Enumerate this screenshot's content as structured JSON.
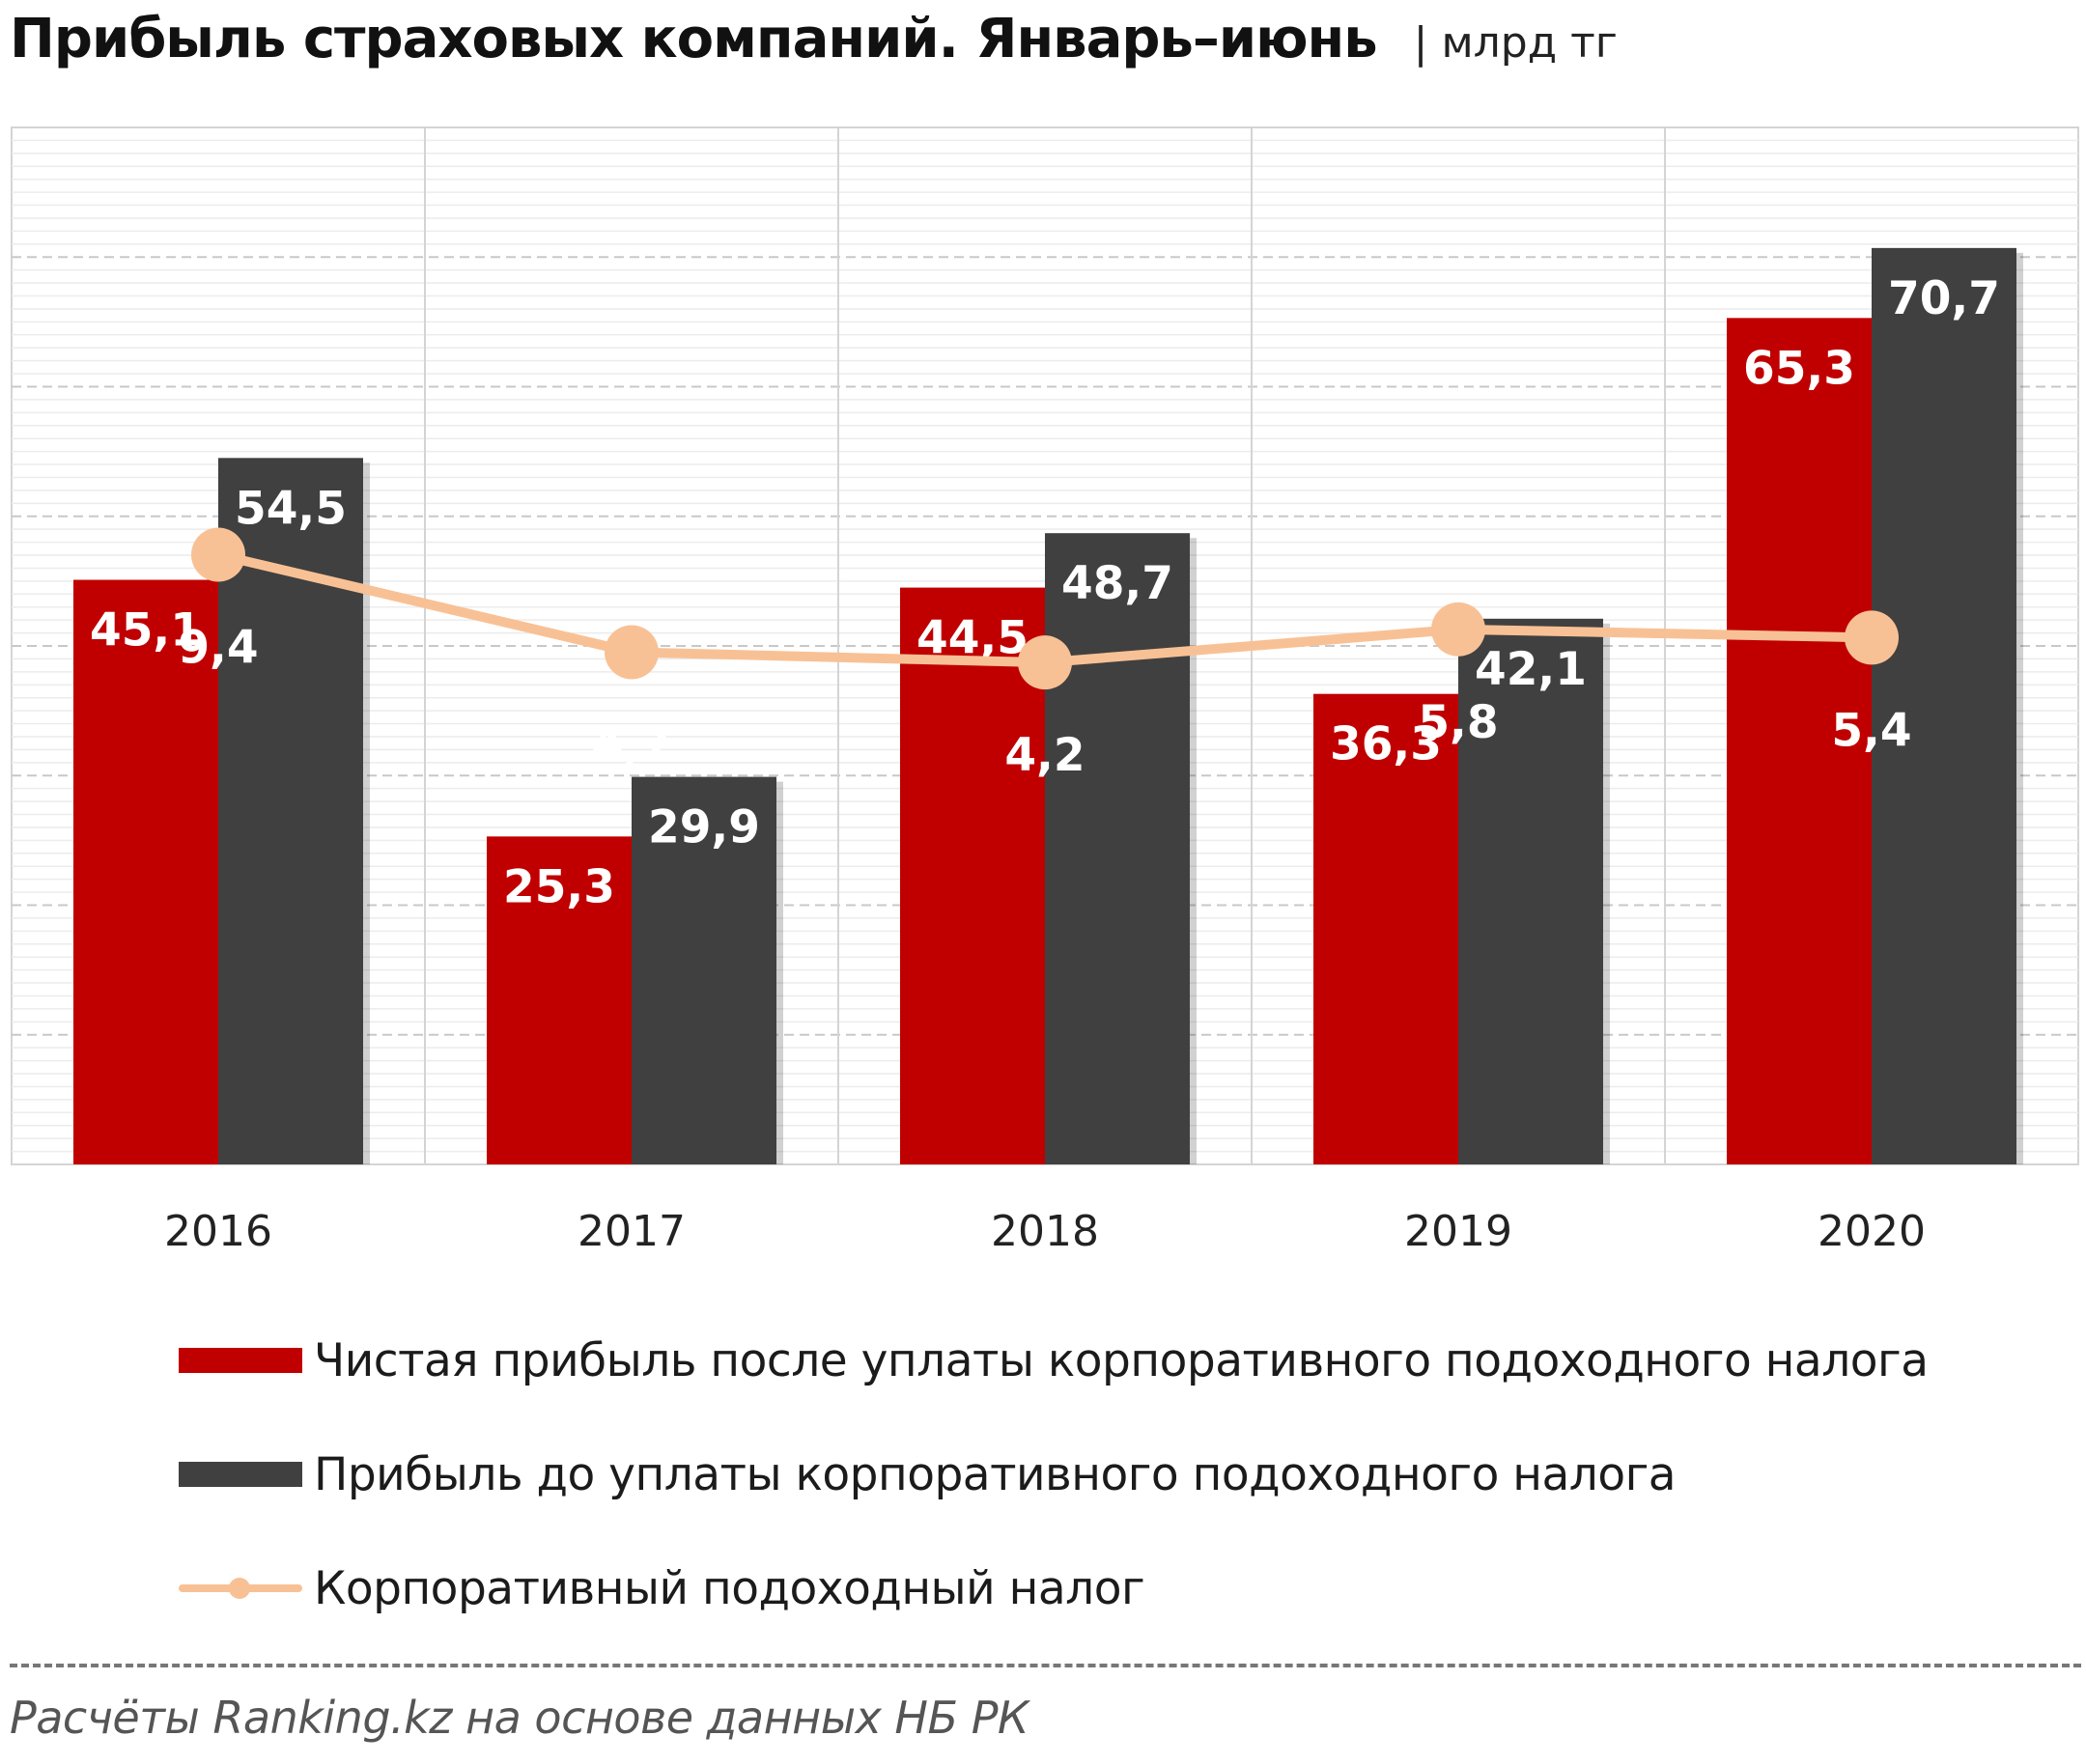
{
  "title": "Прибыль страховых компаний. Январь–июнь",
  "unit": "| млрд тг",
  "source": "Расчёты Ranking.kz на основе данных НБ РК",
  "colors": {
    "net_profit": "#C00000",
    "pretax_profit": "#404040",
    "tax": "#F8C195"
  },
  "chart_data": {
    "type": "bar",
    "categories": [
      "2016",
      "2017",
      "2018",
      "2019",
      "2020"
    ],
    "series": [
      {
        "name": "Чистая прибыль после уплаты корпоративного подоходного налога",
        "type": "bar",
        "values": [
          45.1,
          25.3,
          44.5,
          36.3,
          65.3
        ],
        "labels": [
          "45,1",
          "25,3",
          "44,5",
          "36,3",
          "65,3"
        ]
      },
      {
        "name": "Прибыль до уплаты корпоративного подоходного налога",
        "type": "bar",
        "values": [
          54.5,
          29.9,
          48.7,
          42.1,
          70.7
        ],
        "labels": [
          "54,5",
          "29,9",
          "48,7",
          "42,1",
          "70,7"
        ]
      },
      {
        "name": "Корпоративный подоходный налог",
        "type": "line",
        "values": [
          9.4,
          4.7,
          4.2,
          5.8,
          5.4
        ],
        "labels": [
          "9,4",
          "4,7",
          "4,2",
          "5,8",
          "5,4"
        ]
      }
    ],
    "bar_ylim": [
      0,
      80
    ],
    "line_ylim": [
      -20,
      30
    ],
    "grid": true,
    "legend": "bottom"
  }
}
